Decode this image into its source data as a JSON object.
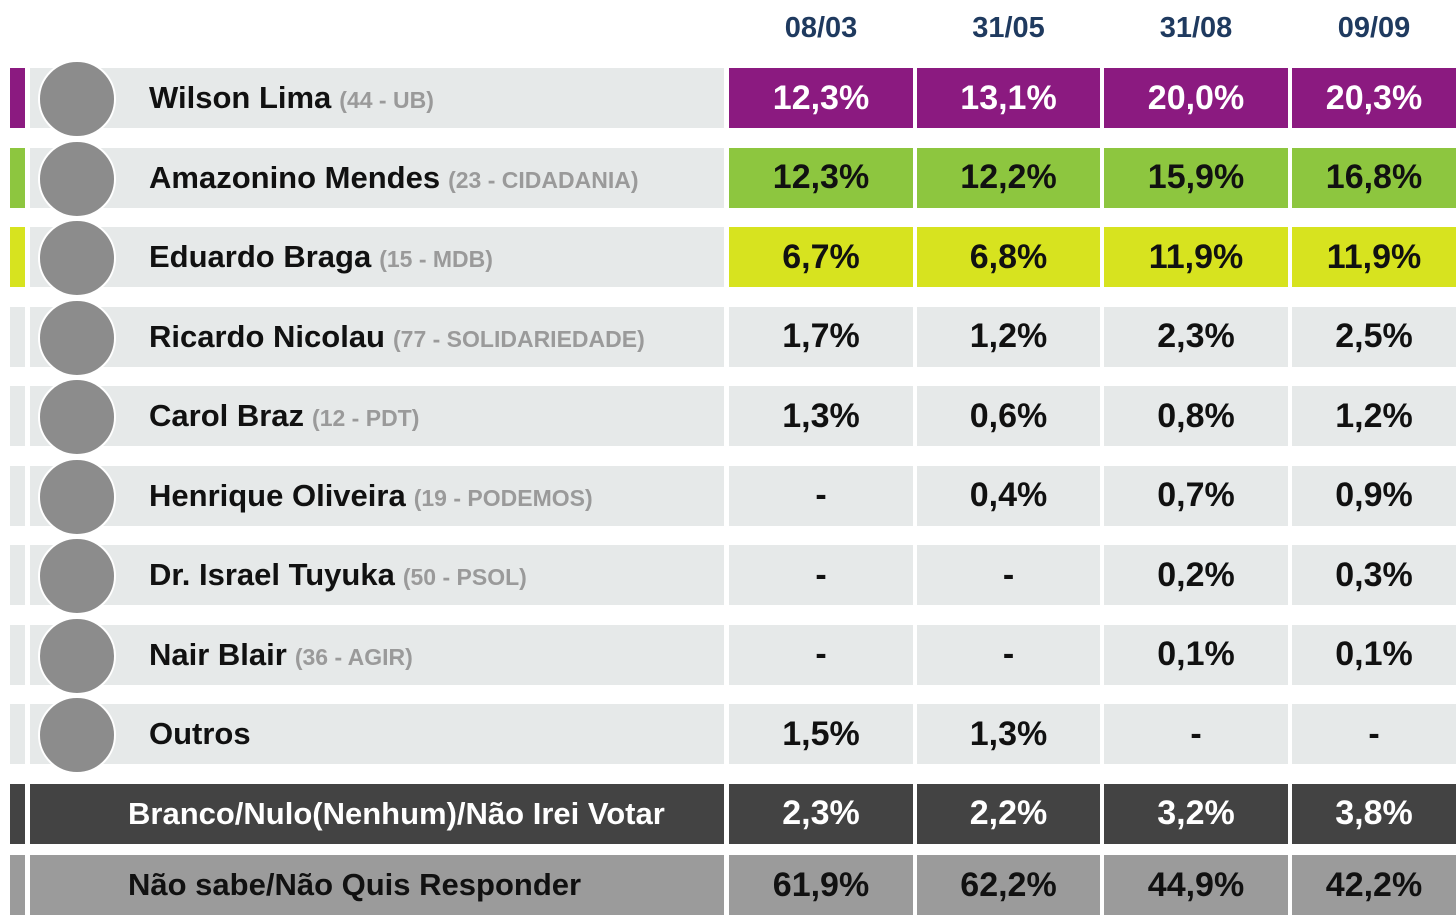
{
  "header": {
    "dates": [
      "08/03",
      "31/05",
      "31/08",
      "09/09"
    ]
  },
  "rows": [
    {
      "name": "Wilson Lima",
      "party": "(44 - UB)",
      "values": [
        "12,3%",
        "13,1%",
        "20,0%",
        "20,3%"
      ],
      "color": "#8b1a80",
      "text_color": "#ffffff"
    },
    {
      "name": "Amazonino Mendes",
      "party": "(23 - CIDADANIA)",
      "values": [
        "12,3%",
        "12,2%",
        "15,9%",
        "16,8%"
      ],
      "color": "#8dc63f",
      "text_color": "#111111"
    },
    {
      "name": "Eduardo Braga",
      "party": "(15 - MDB)",
      "values": [
        "6,7%",
        "6,8%",
        "11,9%",
        "11,9%"
      ],
      "color": "#d7e31f",
      "text_color": "#111111"
    },
    {
      "name": "Ricardo Nicolau",
      "party": "(77 - SOLIDARIEDADE)",
      "values": [
        "1,7%",
        "1,2%",
        "2,3%",
        "2,5%"
      ]
    },
    {
      "name": "Carol Braz",
      "party": "(12 - PDT)",
      "values": [
        "1,3%",
        "0,6%",
        "0,8%",
        "1,2%"
      ]
    },
    {
      "name": "Henrique Oliveira",
      "party": "(19 - PODEMOS)",
      "values": [
        "-",
        "0,4%",
        "0,7%",
        "0,9%"
      ]
    },
    {
      "name": "Dr. Israel Tuyuka",
      "party": "(50 - PSOL)",
      "values": [
        "-",
        "-",
        "0,2%",
        "0,3%"
      ]
    },
    {
      "name": "Nair Blair",
      "party": "(36 - AGIR)",
      "values": [
        "-",
        "-",
        "0,1%",
        "0,1%"
      ]
    },
    {
      "name": "Outros",
      "values": [
        "1,5%",
        "1,3%",
        "-",
        "-"
      ]
    }
  ],
  "summary": [
    {
      "label": "Branco/Nulo(Nenhum)/Não Irei Votar",
      "values": [
        "2,3%",
        "2,2%",
        "3,2%",
        "3,8%"
      ],
      "color": "#434343",
      "text_color": "#ffffff"
    },
    {
      "label": "Não sabe/Não Quis Responder",
      "values": [
        "61,9%",
        "62,2%",
        "44,9%",
        "42,2%"
      ],
      "color": "#9b9b9b",
      "text_color": "#111111"
    }
  ]
}
